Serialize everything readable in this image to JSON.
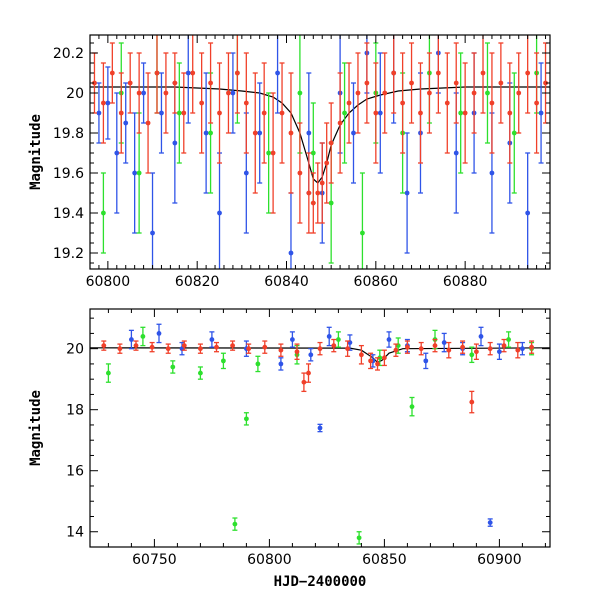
{
  "chart_data": [
    {
      "type": "scatter",
      "name": "top-panel",
      "xlabel": "",
      "ylabel": "Magnitude",
      "xlim": [
        60796,
        60899
      ],
      "ylim": [
        20.29,
        19.12
      ],
      "y_inverted": true,
      "xticks": [
        60800,
        60820,
        60840,
        60860,
        60880
      ],
      "yticks": [
        19.2,
        19.4,
        19.6,
        19.8,
        20,
        20.2
      ],
      "ytick_labels": [
        "19.2",
        "19.4",
        "19.6",
        "19.8",
        "20",
        "20.2"
      ],
      "xticks_minor_step": 2,
      "yticks_minor_step": 0.05,
      "series": [
        {
          "color": "#2f54e8",
          "points": [
            [
              60798,
              19.9,
              0.15
            ],
            [
              60800,
              19.95,
              0.18
            ],
            [
              60802,
              19.7,
              0.3
            ],
            [
              60804,
              19.85,
              0.2
            ],
            [
              60806,
              19.6,
              0.3
            ],
            [
              60808,
              20.0,
              0.15
            ],
            [
              60810,
              19.3,
              0.3
            ],
            [
              60812,
              19.9,
              0.2
            ],
            [
              60815,
              19.75,
              0.3
            ],
            [
              60818,
              20.1,
              0.25
            ],
            [
              60822,
              19.8,
              0.3
            ],
            [
              60825,
              19.4,
              0.3
            ],
            [
              60828,
              20.0,
              0.2
            ],
            [
              60831,
              19.6,
              0.3
            ],
            [
              60834,
              19.8,
              0.25
            ],
            [
              60838,
              20.1,
              0.2
            ],
            [
              60841,
              19.2,
              0.3
            ],
            [
              60845,
              19.8,
              0.3
            ],
            [
              60848,
              19.5,
              0.25
            ],
            [
              60852,
              20.0,
              0.3
            ],
            [
              60855,
              19.8,
              0.25
            ],
            [
              60858,
              20.2,
              0.2
            ],
            [
              60861,
              19.9,
              0.3
            ],
            [
              60864,
              20.1,
              0.25
            ],
            [
              60867,
              19.5,
              0.3
            ],
            [
              60870,
              19.8,
              0.3
            ],
            [
              60874,
              20.2,
              0.2
            ],
            [
              60878,
              19.7,
              0.3
            ],
            [
              60882,
              19.9,
              0.3
            ],
            [
              60886,
              19.6,
              0.3
            ],
            [
              60890,
              19.75,
              0.3
            ],
            [
              60894,
              19.4,
              0.3
            ],
            [
              60897,
              19.9,
              0.25
            ]
          ]
        },
        {
          "color": "#2de02d",
          "points": [
            [
              60799,
              19.4,
              0.2
            ],
            [
              60803,
              20.0,
              0.25
            ],
            [
              60807,
              19.6,
              0.3
            ],
            [
              60811,
              20.1,
              0.2
            ],
            [
              60816,
              19.9,
              0.25
            ],
            [
              60823,
              19.8,
              0.3
            ],
            [
              60829,
              20.1,
              0.25
            ],
            [
              60836,
              19.7,
              0.3
            ],
            [
              60843,
              20.0,
              0.3
            ],
            [
              60846,
              19.7,
              0.25
            ],
            [
              60850,
              19.45,
              0.3
            ],
            [
              60853,
              19.9,
              0.25
            ],
            [
              60857,
              19.3,
              0.3
            ],
            [
              60860,
              20.0,
              0.25
            ],
            [
              60866,
              19.8,
              0.3
            ],
            [
              60872,
              20.1,
              0.25
            ],
            [
              60879,
              19.9,
              0.3
            ],
            [
              60885,
              20.0,
              0.25
            ],
            [
              60891,
              19.8,
              0.3
            ],
            [
              60896,
              20.1,
              0.2
            ]
          ]
        },
        {
          "color": "#f0402a",
          "points": [
            [
              60797,
              20.05,
              0.15
            ],
            [
              60799,
              19.95,
              0.2
            ],
            [
              60801,
              20.1,
              0.15
            ],
            [
              60803,
              19.9,
              0.2
            ],
            [
              60805,
              20.05,
              0.15
            ],
            [
              60807,
              20.0,
              0.2
            ],
            [
              60809,
              19.85,
              0.25
            ],
            [
              60811,
              20.1,
              0.2
            ],
            [
              60813,
              20.0,
              0.2
            ],
            [
              60815,
              20.05,
              0.15
            ],
            [
              60817,
              19.9,
              0.2
            ],
            [
              60819,
              20.1,
              0.2
            ],
            [
              60821,
              19.95,
              0.25
            ],
            [
              60823,
              20.05,
              0.2
            ],
            [
              60825,
              19.9,
              0.25
            ],
            [
              60827,
              20.0,
              0.2
            ],
            [
              60829,
              20.1,
              0.2
            ],
            [
              60831,
              19.95,
              0.25
            ],
            [
              60833,
              19.8,
              0.3
            ],
            [
              60835,
              19.9,
              0.25
            ],
            [
              60837,
              19.7,
              0.3
            ],
            [
              60839,
              19.9,
              0.25
            ],
            [
              60841,
              19.8,
              0.3
            ],
            [
              60843,
              19.6,
              0.25
            ],
            [
              60845,
              19.5,
              0.2
            ],
            [
              60846,
              19.45,
              0.15
            ],
            [
              60847,
              19.5,
              0.15
            ],
            [
              60848,
              19.55,
              0.2
            ],
            [
              60849,
              19.65,
              0.2
            ],
            [
              60850,
              19.75,
              0.2
            ],
            [
              60852,
              19.85,
              0.25
            ],
            [
              60854,
              19.95,
              0.2
            ],
            [
              60856,
              20.0,
              0.2
            ],
            [
              60858,
              20.05,
              0.2
            ],
            [
              60860,
              19.9,
              0.25
            ],
            [
              60862,
              20.0,
              0.2
            ],
            [
              60864,
              20.1,
              0.2
            ],
            [
              60866,
              19.95,
              0.25
            ],
            [
              60868,
              20.05,
              0.2
            ],
            [
              60870,
              19.9,
              0.25
            ],
            [
              60872,
              20.0,
              0.2
            ],
            [
              60874,
              20.1,
              0.2
            ],
            [
              60876,
              19.95,
              0.25
            ],
            [
              60878,
              20.05,
              0.2
            ],
            [
              60880,
              19.9,
              0.25
            ],
            [
              60882,
              20.0,
              0.2
            ],
            [
              60884,
              20.1,
              0.2
            ],
            [
              60886,
              19.95,
              0.25
            ],
            [
              60888,
              20.05,
              0.2
            ],
            [
              60890,
              19.9,
              0.25
            ],
            [
              60892,
              20.0,
              0.2
            ],
            [
              60894,
              20.1,
              0.2
            ],
            [
              60896,
              19.95,
              0.25
            ],
            [
              60898,
              20.05,
              0.2
            ]
          ]
        }
      ],
      "model_curve": {
        "color": "#000000",
        "x": [
          60796,
          60805,
          60815,
          60825,
          60830,
          60834,
          60837,
          60839,
          60841,
          60843,
          60845,
          60846,
          60847,
          60848,
          60849,
          60850,
          60852,
          60854,
          60856,
          60858,
          60861,
          60865,
          60870,
          60880,
          60890,
          60899
        ],
        "y": [
          20.03,
          20.03,
          20.03,
          20.02,
          20.01,
          20.0,
          19.98,
          19.95,
          19.9,
          19.8,
          19.65,
          19.57,
          19.55,
          19.58,
          19.65,
          19.74,
          19.84,
          19.9,
          19.94,
          19.97,
          19.99,
          20.01,
          20.02,
          20.03,
          20.03,
          20.03
        ]
      }
    },
    {
      "type": "scatter",
      "name": "bottom-panel",
      "xlabel": "HJD−2400000",
      "ylabel": "Magnitude",
      "xlim": [
        60722,
        60922
      ],
      "ylim": [
        21.3,
        13.5
      ],
      "y_inverted": true,
      "xticks": [
        60750,
        60800,
        60850,
        60900
      ],
      "yticks": [
        14,
        16,
        18,
        20
      ],
      "ytick_labels": [
        "14",
        "16",
        "18",
        "20"
      ],
      "xticks_minor_step": 10,
      "yticks_minor_step": 0.5,
      "series": [
        {
          "color": "#2f54e8",
          "points": [
            [
              60822,
              17.4,
              0.12
            ],
            [
              60896,
              14.3,
              0.12
            ],
            [
              60740,
              20.3,
              0.3
            ],
            [
              60752,
              20.5,
              0.3
            ],
            [
              60762,
              20.0,
              0.2
            ],
            [
              60775,
              20.3,
              0.25
            ],
            [
              60790,
              20.0,
              0.25
            ],
            [
              60805,
              19.5,
              0.2
            ],
            [
              60810,
              20.3,
              0.25
            ],
            [
              60818,
              19.8,
              0.2
            ],
            [
              60826,
              20.4,
              0.3
            ],
            [
              60835,
              20.2,
              0.25
            ],
            [
              60845,
              19.6,
              0.2
            ],
            [
              60852,
              20.3,
              0.25
            ],
            [
              60860,
              20.1,
              0.2
            ],
            [
              60868,
              19.6,
              0.25
            ],
            [
              60876,
              20.2,
              0.3
            ],
            [
              60884,
              20.0,
              0.2
            ],
            [
              60892,
              20.4,
              0.3
            ],
            [
              60900,
              19.9,
              0.25
            ],
            [
              60910,
              20.0,
              0.2
            ]
          ]
        },
        {
          "color": "#2de02d",
          "points": [
            [
              60785,
              14.25,
              0.2
            ],
            [
              60839,
              13.8,
              0.2
            ],
            [
              60790,
              17.7,
              0.2
            ],
            [
              60862,
              18.1,
              0.3
            ],
            [
              60730,
              19.2,
              0.3
            ],
            [
              60745,
              20.4,
              0.3
            ],
            [
              60758,
              19.4,
              0.2
            ],
            [
              60770,
              19.2,
              0.2
            ],
            [
              60780,
              19.6,
              0.25
            ],
            [
              60795,
              19.5,
              0.25
            ],
            [
              60812,
              19.8,
              0.3
            ],
            [
              60830,
              20.3,
              0.25
            ],
            [
              60848,
              19.7,
              0.25
            ],
            [
              60856,
              20.1,
              0.25
            ],
            [
              60872,
              20.3,
              0.3
            ],
            [
              60888,
              19.8,
              0.25
            ],
            [
              60904,
              20.3,
              0.25
            ],
            [
              60914,
              20.0,
              0.2
            ]
          ]
        },
        {
          "color": "#f0402a",
          "points": [
            [
              60888,
              18.25,
              0.35
            ],
            [
              60815,
              18.9,
              0.3
            ],
            [
              60728,
              20.1,
              0.15
            ],
            [
              60735,
              20.0,
              0.15
            ],
            [
              60742,
              20.1,
              0.15
            ],
            [
              60749,
              20.05,
              0.15
            ],
            [
              60756,
              20.0,
              0.15
            ],
            [
              60763,
              20.1,
              0.15
            ],
            [
              60770,
              20.0,
              0.15
            ],
            [
              60777,
              20.05,
              0.15
            ],
            [
              60784,
              20.1,
              0.15
            ],
            [
              60791,
              20.0,
              0.15
            ],
            [
              60798,
              20.05,
              0.2
            ],
            [
              60805,
              19.95,
              0.2
            ],
            [
              60812,
              19.9,
              0.25
            ],
            [
              60817,
              19.2,
              0.3
            ],
            [
              60822,
              20.0,
              0.2
            ],
            [
              60828,
              20.1,
              0.2
            ],
            [
              60834,
              20.0,
              0.25
            ],
            [
              60840,
              19.8,
              0.3
            ],
            [
              60844,
              19.6,
              0.25
            ],
            [
              60847,
              19.5,
              0.2
            ],
            [
              60850,
              19.7,
              0.25
            ],
            [
              60855,
              19.95,
              0.2
            ],
            [
              60860,
              20.05,
              0.2
            ],
            [
              60866,
              20.0,
              0.2
            ],
            [
              60872,
              20.1,
              0.2
            ],
            [
              60878,
              19.95,
              0.25
            ],
            [
              60884,
              20.05,
              0.2
            ],
            [
              60890,
              19.9,
              0.25
            ],
            [
              60896,
              20.0,
              0.2
            ],
            [
              60902,
              20.1,
              0.2
            ],
            [
              60908,
              19.95,
              0.25
            ],
            [
              60914,
              20.05,
              0.2
            ]
          ]
        }
      ],
      "model_curve": {
        "color": "#000000",
        "x": [
          60722,
          60835,
          60840,
          60845,
          60847,
          60849,
          60852,
          60858,
          60922
        ],
        "y": [
          20.03,
          20.02,
          19.95,
          19.7,
          19.55,
          19.62,
          19.85,
          20.0,
          20.03
        ]
      }
    }
  ]
}
